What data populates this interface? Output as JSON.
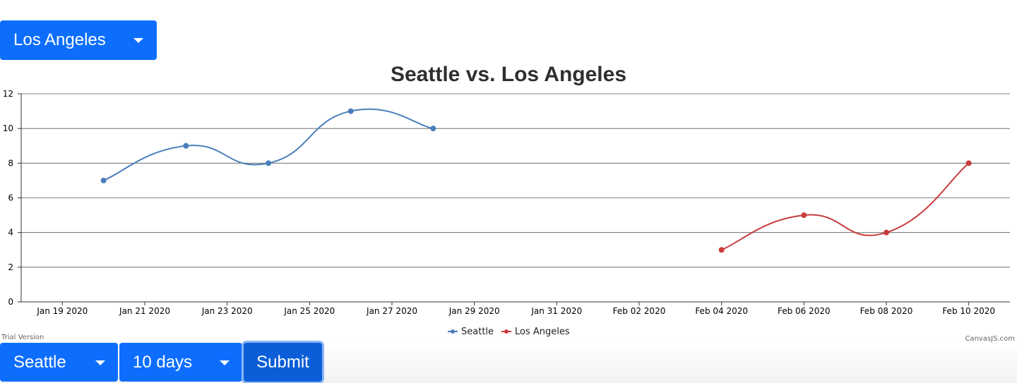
{
  "top_select": {
    "value": "Los Angeles",
    "icon": "caret-down-icon"
  },
  "bottom_controls": {
    "city_value": "Seattle",
    "days_value": "10 days",
    "submit_label": "Submit"
  },
  "watermark": {
    "trial": "Trial Version",
    "brand": "CanvasJS.com"
  },
  "colors": {
    "accent": "#0d6efd",
    "seattle": "#4a7ebb",
    "los_angeles": "#c83c3c"
  },
  "chart_data": {
    "type": "line",
    "title": "Seattle vs. Los Angeles",
    "xlabel": "",
    "ylabel": "",
    "ylim": [
      0,
      12
    ],
    "xlim": [
      "2020-01-18",
      "2020-02-11"
    ],
    "y_ticks": [
      0,
      2,
      4,
      6,
      8,
      10,
      12
    ],
    "x_ticks": [
      "Jan 19 2020",
      "Jan 21 2020",
      "Jan 23 2020",
      "Jan 25 2020",
      "Jan 27 2020",
      "Jan 29 2020",
      "Jan 31 2020",
      "Feb 02 2020",
      "Feb 04 2020",
      "Feb 06 2020",
      "Feb 08 2020",
      "Feb 10 2020"
    ],
    "grid": true,
    "legend_position": "bottom-center",
    "series": [
      {
        "name": "Seattle",
        "color": "#4a7ebb",
        "x": [
          "2020-01-20",
          "2020-01-22",
          "2020-01-24",
          "2020-01-26",
          "2020-01-28"
        ],
        "values": [
          7,
          9,
          8,
          11,
          10
        ]
      },
      {
        "name": "Los Angeles",
        "color": "#c83c3c",
        "x": [
          "2020-02-04",
          "2020-02-06",
          "2020-02-08",
          "2020-02-10"
        ],
        "values": [
          3,
          5,
          4,
          8
        ]
      }
    ]
  }
}
